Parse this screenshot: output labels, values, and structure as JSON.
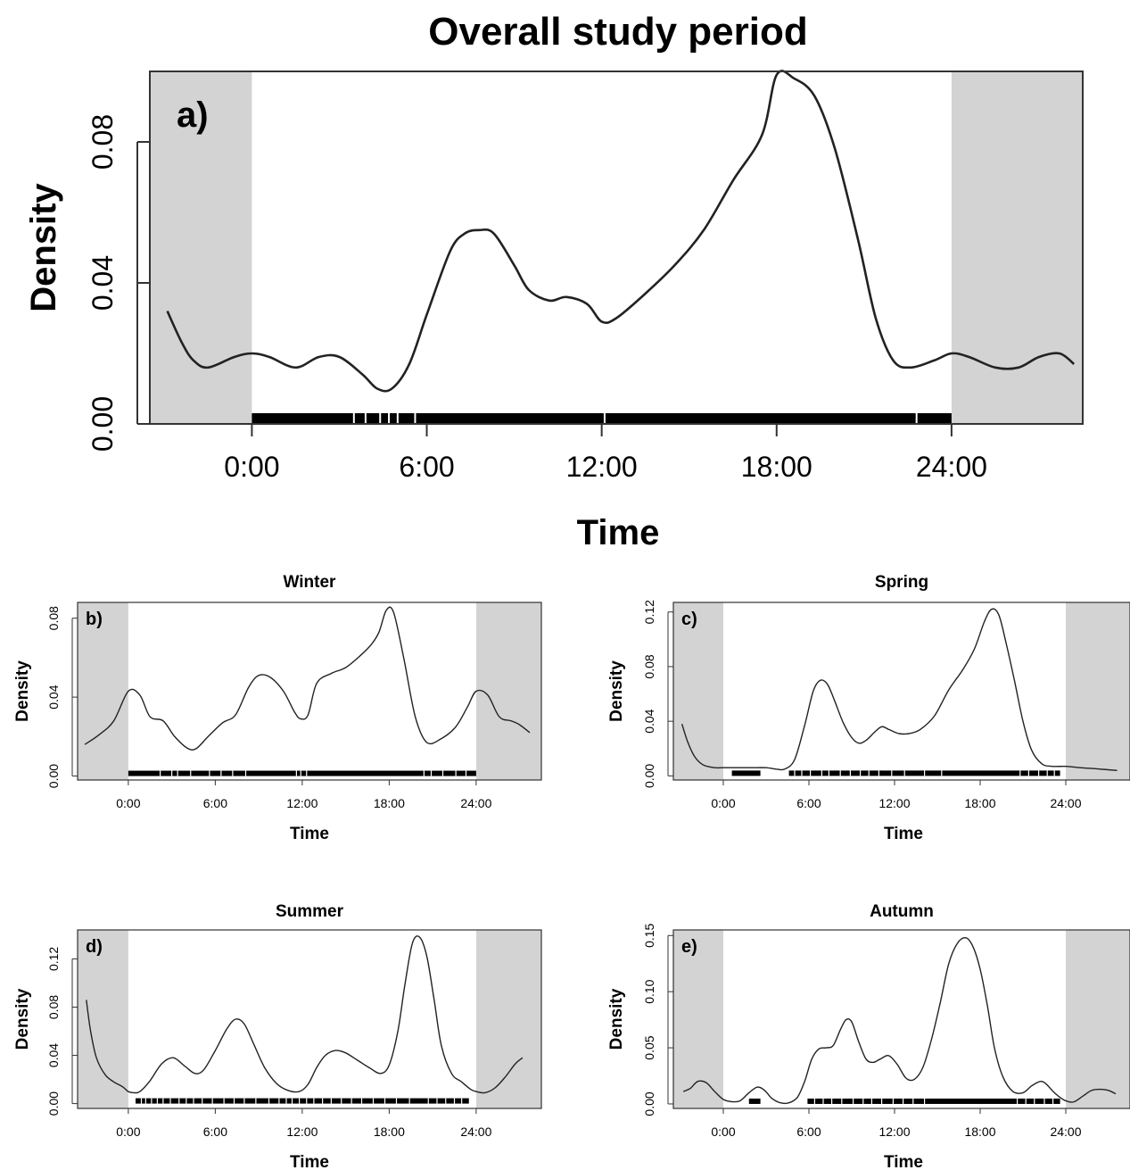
{
  "chart_data": [
    {
      "id": "a",
      "type": "line",
      "title": "Overall study period",
      "panel_label": "a)",
      "xlabel": "Time",
      "ylabel": "Density",
      "xlim": [
        -3.5,
        28.5
      ],
      "ylim": [
        0,
        0.1
      ],
      "night_shading": [
        [
          -3.5,
          0
        ],
        [
          24,
          28.5
        ]
      ],
      "xticks": [
        {
          "v": 0,
          "label": "0:00"
        },
        {
          "v": 6,
          "label": "6:00"
        },
        {
          "v": 12,
          "label": "12:00"
        },
        {
          "v": 18,
          "label": "18:00"
        },
        {
          "v": 24,
          "label": "24:00"
        }
      ],
      "yticks": [
        {
          "v": 0,
          "label": "0.00"
        },
        {
          "v": 0.04,
          "label": "0.04"
        },
        {
          "v": 0.08,
          "label": "0.08"
        }
      ],
      "series": [
        {
          "x": [
            -2.9,
            -2.4,
            -2,
            -1.5,
            -0.6,
            0,
            0.6,
            1.5,
            2.3,
            3,
            3.8,
            4.3,
            4.8,
            5.4,
            6,
            6.8,
            7.3,
            7.8,
            8.3,
            9,
            9.5,
            10.2,
            10.8,
            11.5,
            12,
            12.5,
            13.5,
            14.5,
            15.5,
            16.5,
            17.5,
            18,
            18.6,
            19.3,
            20,
            20.8,
            21.4,
            22,
            22.6,
            23.4,
            24,
            24.6,
            25.5,
            26.3,
            27,
            27.7,
            28.2
          ],
          "y": [
            0.032,
            0.023,
            0.018,
            0.016,
            0.019,
            0.02,
            0.019,
            0.016,
            0.019,
            0.019,
            0.014,
            0.01,
            0.01,
            0.017,
            0.031,
            0.049,
            0.054,
            0.055,
            0.054,
            0.045,
            0.038,
            0.035,
            0.036,
            0.034,
            0.029,
            0.03,
            0.037,
            0.045,
            0.055,
            0.069,
            0.082,
            0.099,
            0.098,
            0.093,
            0.078,
            0.052,
            0.03,
            0.018,
            0.016,
            0.018,
            0.02,
            0.019,
            0.016,
            0.016,
            0.019,
            0.02,
            0.017
          ]
        }
      ],
      "rug": [
        {
          "from": 0,
          "to": 24
        }
      ],
      "rug_gaps": [
        3.5,
        3.9,
        4.4,
        4.7,
        5.0,
        5.6,
        12.1,
        22.8
      ]
    },
    {
      "id": "b",
      "type": "line",
      "title": "Winter",
      "panel_label": "b)",
      "xlabel": "Time",
      "ylabel": "Density",
      "xlim": [
        -3.5,
        28.5
      ],
      "ylim": [
        -0.002,
        0.088
      ],
      "night_shading": [
        [
          -3.5,
          0
        ],
        [
          24,
          28.5
        ]
      ],
      "xticks": [
        {
          "v": 0,
          "label": "0:00"
        },
        {
          "v": 6,
          "label": "6:00"
        },
        {
          "v": 12,
          "label": "12:00"
        },
        {
          "v": 18,
          "label": "18:00"
        },
        {
          "v": 24,
          "label": "24:00"
        }
      ],
      "yticks": [
        {
          "v": 0,
          "label": "0.00"
        },
        {
          "v": 0.04,
          "label": "0.04"
        },
        {
          "v": 0.08,
          "label": "0.08"
        }
      ],
      "series": [
        {
          "x": [
            -3,
            -2,
            -1,
            0,
            0.8,
            1.5,
            2.4,
            3.2,
            4.1,
            4.7,
            5.5,
            6.5,
            7.4,
            8.3,
            9,
            9.8,
            10.7,
            11.5,
            11.9,
            12.4,
            13,
            14,
            15,
            16,
            16.8,
            17.3,
            17.8,
            18.3,
            19,
            19.8,
            20.6,
            21.6,
            22.6,
            23.4,
            24,
            24.8,
            25.6,
            26.4,
            27,
            27.7
          ],
          "y": [
            0.016,
            0.021,
            0.028,
            0.043,
            0.041,
            0.03,
            0.028,
            0.02,
            0.014,
            0.014,
            0.02,
            0.027,
            0.031,
            0.045,
            0.051,
            0.05,
            0.043,
            0.032,
            0.029,
            0.031,
            0.047,
            0.052,
            0.055,
            0.061,
            0.067,
            0.073,
            0.084,
            0.083,
            0.06,
            0.03,
            0.017,
            0.019,
            0.025,
            0.035,
            0.043,
            0.041,
            0.03,
            0.028,
            0.026,
            0.022
          ]
        }
      ],
      "rug": [
        {
          "from": 0,
          "to": 24
        }
      ],
      "rug_gaps": [
        2.2,
        3.0,
        3.4,
        4.3,
        5.6,
        6.4,
        7.2,
        8.1,
        11.6,
        11.9,
        12.3,
        20.4,
        20.9,
        21.7,
        22.6,
        23.3
      ]
    },
    {
      "id": "c",
      "type": "line",
      "title": "Spring",
      "panel_label": "c)",
      "xlabel": "Time",
      "ylabel": "Density",
      "xlim": [
        -3.5,
        28.5
      ],
      "ylim": [
        -0.003,
        0.127
      ],
      "night_shading": [
        [
          -3.5,
          0
        ],
        [
          24,
          28.5
        ]
      ],
      "xticks": [
        {
          "v": 0,
          "label": "0:00"
        },
        {
          "v": 6,
          "label": "6:00"
        },
        {
          "v": 12,
          "label": "12:00"
        },
        {
          "v": 18,
          "label": "18:00"
        },
        {
          "v": 24,
          "label": "24:00"
        }
      ],
      "yticks": [
        {
          "v": 0,
          "label": "0.00"
        },
        {
          "v": 0.04,
          "label": "0.04"
        },
        {
          "v": 0.08,
          "label": "0.08"
        },
        {
          "v": 0.12,
          "label": "0.12"
        }
      ],
      "series": [
        {
          "x": [
            -2.9,
            -2.5,
            -2,
            -1.4,
            -0.6,
            0,
            1,
            2,
            3,
            3.7,
            4.3,
            5,
            5.7,
            6.3,
            6.8,
            7.3,
            7.8,
            8.4,
            9,
            9.5,
            10,
            10.6,
            11.1,
            11.6,
            12.3,
            13,
            13.8,
            14.8,
            15.8,
            16.8,
            17.6,
            18.3,
            18.8,
            19.3,
            19.8,
            20.4,
            21,
            21.6,
            22.3,
            23,
            24,
            25,
            26.4,
            27.6
          ],
          "y": [
            0.038,
            0.025,
            0.014,
            0.008,
            0.006,
            0.006,
            0.006,
            0.006,
            0.006,
            0.005,
            0.005,
            0.012,
            0.037,
            0.062,
            0.07,
            0.067,
            0.055,
            0.039,
            0.028,
            0.024,
            0.026,
            0.032,
            0.036,
            0.034,
            0.031,
            0.031,
            0.034,
            0.044,
            0.063,
            0.078,
            0.093,
            0.113,
            0.122,
            0.118,
            0.098,
            0.07,
            0.04,
            0.019,
            0.009,
            0.007,
            0.007,
            0.006,
            0.005,
            0.004
          ]
        }
      ],
      "rug": [
        {
          "from": 0.6,
          "to": 2.6
        },
        {
          "from": 4.6,
          "to": 23.6
        }
      ],
      "rug_gaps": [
        5.0,
        5.5,
        6.1,
        6.9,
        7.4,
        8.2,
        8.9,
        9.6,
        10.2,
        10.9,
        11.8,
        12.7,
        14.1,
        15.3,
        20.8,
        21.4,
        22.1,
        22.7,
        23.2
      ]
    },
    {
      "id": "d",
      "type": "line",
      "title": "Summer",
      "panel_label": "d)",
      "xlabel": "Time",
      "ylabel": "Density",
      "xlim": [
        -3.5,
        28.5
      ],
      "ylim": [
        -0.004,
        0.144
      ],
      "night_shading": [
        [
          -3.5,
          0
        ],
        [
          24,
          28.5
        ]
      ],
      "xticks": [
        {
          "v": 0,
          "label": "0:00"
        },
        {
          "v": 6,
          "label": "6:00"
        },
        {
          "v": 12,
          "label": "12:00"
        },
        {
          "v": 18,
          "label": "18:00"
        },
        {
          "v": 24,
          "label": "24:00"
        }
      ],
      "yticks": [
        {
          "v": 0,
          "label": "0.00"
        },
        {
          "v": 0.04,
          "label": "0.04"
        },
        {
          "v": 0.08,
          "label": "0.08"
        },
        {
          "v": 0.12,
          "label": "0.12"
        }
      ],
      "series": [
        {
          "x": [
            -2.9,
            -2.6,
            -2.2,
            -1.6,
            -1,
            -0.4,
            0,
            0.4,
            0.8,
            1.5,
            2.3,
            3.1,
            3.9,
            4.6,
            5.2,
            6,
            6.8,
            7.4,
            8,
            8.7,
            9.4,
            10.2,
            11,
            11.8,
            12.4,
            13,
            13.6,
            14.3,
            15,
            15.8,
            16.6,
            17.4,
            18,
            18.6,
            19.1,
            19.6,
            20.1,
            20.6,
            21.1,
            21.6,
            22.3,
            23,
            23.6,
            24,
            24.6,
            25.3,
            26,
            26.7,
            27.2
          ],
          "y": [
            0.086,
            0.06,
            0.038,
            0.024,
            0.018,
            0.014,
            0.01,
            0.009,
            0.01,
            0.019,
            0.033,
            0.038,
            0.031,
            0.025,
            0.028,
            0.044,
            0.062,
            0.07,
            0.066,
            0.048,
            0.03,
            0.017,
            0.011,
            0.01,
            0.016,
            0.03,
            0.04,
            0.044,
            0.042,
            0.036,
            0.03,
            0.025,
            0.032,
            0.06,
            0.1,
            0.133,
            0.138,
            0.122,
            0.086,
            0.048,
            0.025,
            0.018,
            0.012,
            0.01,
            0.009,
            0.013,
            0.022,
            0.033,
            0.038
          ]
        }
      ],
      "rug": [
        {
          "from": 0.5,
          "to": 23.5
        }
      ],
      "rug_gaps": [
        0.9,
        1.2,
        1.6,
        2.0,
        2.4,
        2.9,
        3.5,
        4.0,
        4.5,
        5.1,
        5.8,
        6.6,
        7.3,
        8.0,
        8.8,
        9.7,
        10.4,
        10.9,
        11.3,
        11.8,
        12.3,
        12.8,
        13.4,
        14.0,
        14.7,
        15.4,
        16.1,
        16.9,
        17.7,
        18.5,
        19.4,
        20.7,
        21.3,
        21.9,
        22.5,
        23.0
      ]
    },
    {
      "id": "e",
      "type": "line",
      "title": "Autumn",
      "panel_label": "e)",
      "xlabel": "Time",
      "ylabel": "Density",
      "xlim": [
        -3.5,
        28.5
      ],
      "ylim": [
        -0.004,
        0.155
      ],
      "night_shading": [
        [
          -3.5,
          0
        ],
        [
          24,
          28.5
        ]
      ],
      "xticks": [
        {
          "v": 0,
          "label": "0:00"
        },
        {
          "v": 6,
          "label": "6:00"
        },
        {
          "v": 12,
          "label": "12:00"
        },
        {
          "v": 18,
          "label": "18:00"
        },
        {
          "v": 24,
          "label": "24:00"
        }
      ],
      "yticks": [
        {
          "v": 0,
          "label": "0.00"
        },
        {
          "v": 0.05,
          "label": "0.05"
        },
        {
          "v": 0.1,
          "label": "0.10"
        },
        {
          "v": 0.15,
          "label": "0.15"
        }
      ],
      "series": [
        {
          "x": [
            -2.8,
            -2.3,
            -1.8,
            -1.2,
            -0.6,
            0,
            0.6,
            1.2,
            1.8,
            2.4,
            2.9,
            3.4,
            4,
            4.6,
            5.2,
            5.7,
            6.2,
            6.7,
            7.2,
            7.7,
            8.2,
            8.6,
            9,
            9.5,
            10,
            10.5,
            11,
            11.6,
            12.2,
            12.8,
            13.4,
            14,
            14.6,
            15.2,
            15.8,
            16.4,
            17,
            17.5,
            18,
            18.5,
            19,
            19.6,
            20.3,
            21,
            21.6,
            22.2,
            22.6,
            23.2,
            23.8,
            24.2,
            24.6,
            25.2,
            25.8,
            26.4,
            27,
            27.5
          ],
          "y": [
            0.011,
            0.014,
            0.02,
            0.019,
            0.011,
            0.004,
            0.002,
            0.003,
            0.01,
            0.015,
            0.012,
            0.005,
            0.001,
            0.001,
            0.006,
            0.02,
            0.04,
            0.049,
            0.05,
            0.052,
            0.066,
            0.075,
            0.073,
            0.055,
            0.04,
            0.037,
            0.04,
            0.043,
            0.035,
            0.023,
            0.022,
            0.033,
            0.058,
            0.09,
            0.125,
            0.143,
            0.148,
            0.14,
            0.12,
            0.088,
            0.05,
            0.024,
            0.011,
            0.01,
            0.016,
            0.02,
            0.018,
            0.01,
            0.004,
            0.002,
            0.002,
            0.007,
            0.012,
            0.013,
            0.012,
            0.009
          ]
        }
      ],
      "rug": [
        {
          "from": 1.8,
          "to": 2.6
        },
        {
          "from": 5.9,
          "to": 23.6
        }
      ],
      "rug_gaps": [
        6.4,
        7.0,
        7.6,
        8.3,
        9.1,
        9.8,
        10.4,
        11.1,
        11.9,
        12.6,
        13.3,
        14.1,
        20.6,
        21.2,
        21.8,
        22.5,
        23.1
      ]
    }
  ]
}
